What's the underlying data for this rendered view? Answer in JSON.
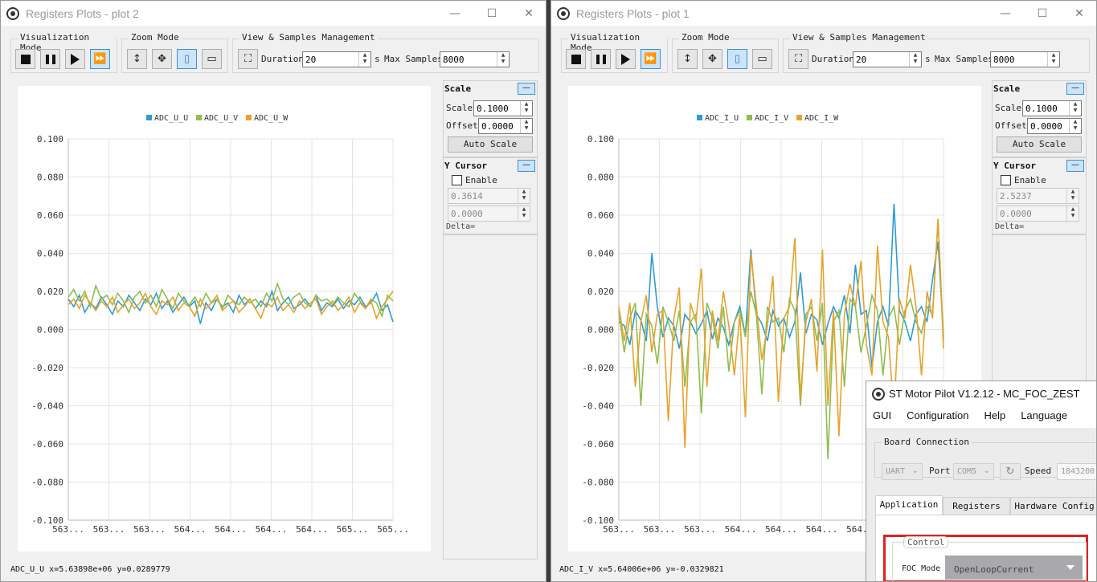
{
  "plot2": {
    "title": "Registers Plots - plot 2",
    "groups": {
      "visualization": "Visualization Mode",
      "zoom": "Zoom Mode",
      "view": "View & Samples Management"
    },
    "duration_label": "Duration",
    "duration_value": "20",
    "duration_unit": "s",
    "max_samples_label": "Max Samples",
    "max_samples_value": "8000",
    "scale": {
      "title": "Scale",
      "scale_label": "Scale",
      "scale_value": "0.1000",
      "offset_label": "Offset",
      "offset_value": "0.0000",
      "auto_label": "Auto Scale"
    },
    "cursor": {
      "title": "Y Cursor",
      "enable_label": "Enable",
      "v1": "0.3614",
      "v2": "0.0000",
      "delta_label": "Delta="
    },
    "status": "ADC_U_U x=5.63898e+06 y=0.0289779"
  },
  "plot1": {
    "title": "Registers Plots - plot 1",
    "groups": {
      "visualization": "Visualization Mode",
      "zoom": "Zoom Mode",
      "view": "View & Samples Management"
    },
    "duration_label": "Duration",
    "duration_value": "20",
    "duration_unit": "s",
    "max_samples_label": "Max Samples",
    "max_samples_value": "8000",
    "scale": {
      "title": "Scale",
      "scale_label": "Scale",
      "scale_value": "0.1000",
      "offset_label": "Offset",
      "offset_value": "0.0000",
      "auto_label": "Auto Scale"
    },
    "cursor": {
      "title": "Y Cursor",
      "enable_label": "Enable",
      "v1": "2.5237",
      "v2": "0.0000",
      "delta_label": "Delta="
    },
    "status": "ADC_I_V x=5.64006e+06 y=-0.0329821"
  },
  "pilot": {
    "title": "ST Motor Pilot V1.2.12 - MC_FOC_ZEST",
    "menu": [
      "GUI",
      "Configuration",
      "Help",
      "Language"
    ],
    "board_connection": "Board Connection",
    "connection_type": "UART",
    "port_label": "Port",
    "port_value": "COM5",
    "speed_label": "Speed",
    "speed_value": "1843200",
    "tabs": [
      "Application",
      "Registers",
      "Hardware Config"
    ],
    "control_label": "Control",
    "foc_mode_label": "FOC Mode",
    "foc_mode_value": "OpenLoopCurrent"
  },
  "colors": {
    "series_u": "#2e9bd6",
    "series_v": "#8dbe4f",
    "series_w": "#e8a22b",
    "highlight": "#e02020",
    "toggle_on": "#cce4f7"
  },
  "icons": [
    "stop-icon",
    "pause-icon",
    "play-icon",
    "fast-forward-icon",
    "zoom-xy-icon",
    "pan-icon",
    "zoom-y-icon",
    "zoom-x-icon",
    "fit-view-icon",
    "refresh-icon",
    "chevron-down-icon"
  ],
  "chart_data": [
    {
      "type": "line",
      "name": "plot2",
      "ylim": [
        -0.1,
        0.1
      ],
      "yticks": [
        "0.100",
        "0.080",
        "0.060",
        "0.040",
        "0.020",
        "0.000",
        "-0.020",
        "-0.040",
        "-0.060",
        "-0.080",
        "-0.100"
      ],
      "xticks": [
        "563...",
        "563...",
        "563...",
        "564...",
        "564...",
        "564...",
        "564...",
        "565...",
        "565..."
      ],
      "grid": true,
      "legend": "top-center",
      "series": [
        {
          "name": "ADC_U_U",
          "values": [
            0.016,
            0.012,
            0.018,
            0.009,
            0.014,
            0.011,
            0.017,
            0.013,
            0.008,
            0.015,
            0.012,
            0.018,
            0.014,
            0.01,
            0.016,
            0.013,
            0.019,
            0.011,
            0.015,
            0.009,
            0.013,
            0.017,
            0.012,
            0.015,
            0.003,
            0.014,
            0.01,
            0.016,
            0.012,
            0.014,
            0.009,
            0.018,
            0.013,
            0.016,
            0.011,
            0.015,
            0.012,
            0.02,
            0.01,
            0.014,
            0.017,
            0.011,
            0.013,
            0.016,
            0.012,
            0.018,
            0.01,
            0.014,
            0.012,
            0.016,
            0.011,
            0.015,
            0.013,
            0.017,
            0.012,
            0.014,
            0.019,
            0.01,
            0.013,
            0.004
          ]
        },
        {
          "name": "ADC_U_V",
          "values": [
            0.017,
            0.021,
            0.015,
            0.02,
            0.012,
            0.023,
            0.016,
            0.018,
            0.013,
            0.019,
            0.015,
            0.009,
            0.017,
            0.02,
            0.014,
            0.018,
            0.012,
            0.021,
            0.016,
            0.011,
            0.019,
            0.015,
            0.013,
            0.017,
            0.012,
            0.019,
            0.014,
            0.016,
            0.011,
            0.018,
            0.015,
            0.013,
            0.017,
            0.014,
            0.016,
            0.012,
            0.019,
            0.015,
            0.024,
            0.016,
            0.013,
            0.017,
            0.019,
            0.014,
            0.012,
            0.018,
            0.015,
            0.016,
            0.013,
            0.017,
            0.014,
            0.012,
            0.019,
            0.015,
            0.011,
            0.016,
            0.014,
            0.007,
            0.018,
            0.015
          ]
        },
        {
          "name": "ADC_U_W",
          "values": [
            0.013,
            0.016,
            0.011,
            0.018,
            0.014,
            0.01,
            0.015,
            0.012,
            0.017,
            0.009,
            0.013,
            0.016,
            0.011,
            0.014,
            0.019,
            0.012,
            0.008,
            0.015,
            0.013,
            0.017,
            0.01,
            0.014,
            0.012,
            0.007,
            0.016,
            0.011,
            0.014,
            0.018,
            0.01,
            0.013,
            0.015,
            0.009,
            0.012,
            0.016,
            0.011,
            0.006,
            0.014,
            0.012,
            0.017,
            0.01,
            0.013,
            0.009,
            0.015,
            0.011,
            0.014,
            0.016,
            0.008,
            0.012,
            0.015,
            0.01,
            0.013,
            0.017,
            0.009,
            0.014,
            0.011,
            0.015,
            0.006,
            0.012,
            0.016,
            0.02
          ]
        }
      ]
    },
    {
      "type": "line",
      "name": "plot1",
      "ylim": [
        -0.1,
        0.1
      ],
      "yticks": [
        "0.100",
        "0.080",
        "0.060",
        "0.040",
        "0.020",
        "0.000",
        "-0.020",
        "-0.040",
        "-0.060",
        "-0.080",
        "-0.100"
      ],
      "xticks": [
        "563...",
        "563...",
        "563...",
        "564...",
        "564...",
        "564...",
        "564...",
        "565...",
        "565..."
      ],
      "grid": true,
      "legend": "top-center",
      "series": [
        {
          "name": "ADC_I_U",
          "values": [
            0.004,
            0.002,
            -0.008,
            0.01,
            0.005,
            -0.006,
            0.04,
            0.012,
            -0.004,
            0.006,
            0.002,
            -0.01,
            0.008,
            0.004,
            -0.002,
            0.003,
            0.01,
            -0.005,
            0.006,
            0.001,
            -0.008,
            0.004,
            0.012,
            -0.003,
            0.042,
            0.008,
            0.003,
            -0.006,
            0.01,
            0.002,
            0.006,
            -0.004,
            0.004,
            0.03,
            -0.002,
            0.008,
            0.005,
            -0.008,
            0.003,
            0.012,
            0.006,
            0.018,
            -0.002,
            0.034,
            0.008,
            0.01,
            -0.02,
            0.004,
            0.012,
            0.002,
            0.066,
            0.01,
            0.004,
            -0.006,
            0.008,
            0.012,
            0.004,
            0.026,
            0.046,
            -0.004
          ]
        },
        {
          "name": "ADC_I_V",
          "values": [
            0.01,
            -0.012,
            0.006,
            0.014,
            -0.04,
            0.008,
            0.002,
            -0.018,
            0.012,
            0.004,
            -0.006,
            0.01,
            -0.03,
            0.004,
            0.008,
            -0.044,
            0.014,
            0.006,
            -0.01,
            0.012,
            -0.022,
            0.004,
            0.01,
            -0.004,
            0.02,
            0.008,
            -0.034,
            0.012,
            0.004,
            0.006,
            -0.012,
            0.016,
            0.01,
            -0.04,
            0.008,
            0.012,
            -0.006,
            0.014,
            -0.068,
            0.004,
            0.01,
            -0.03,
            0.016,
            0.012,
            -0.012,
            0.002,
            0.018,
            0.01,
            -0.024,
            0.006,
            0.012,
            -0.008,
            0.01,
            0.016,
            0.004,
            -0.002,
            0.012,
            0.008,
            0.058,
            -0.006
          ]
        },
        {
          "name": "ADC_I_W",
          "values": [
            0.012,
            -0.006,
            0.014,
            -0.03,
            0.004,
            0.018,
            -0.012,
            0.008,
            0.01,
            -0.048,
            0.006,
            0.022,
            -0.062,
            0.014,
            0.004,
            0.032,
            -0.03,
            0.01,
            -0.006,
            0.02,
            0.002,
            -0.024,
            0.008,
            -0.046,
            0.04,
            0.012,
            -0.016,
            0.002,
            0.028,
            -0.038,
            0.006,
            0.012,
            0.048,
            -0.036,
            0.004,
            0.016,
            -0.022,
            0.042,
            -0.04,
            0.01,
            -0.056,
            0.008,
            0.024,
            0.012,
            0.036,
            -0.008,
            -0.024,
            0.044,
            0.004,
            -0.004,
            -0.044,
            0.016,
            0.006,
            0.034,
            0.012,
            -0.024,
            0.02,
            0.006,
            0.058,
            -0.01
          ]
        }
      ]
    }
  ]
}
